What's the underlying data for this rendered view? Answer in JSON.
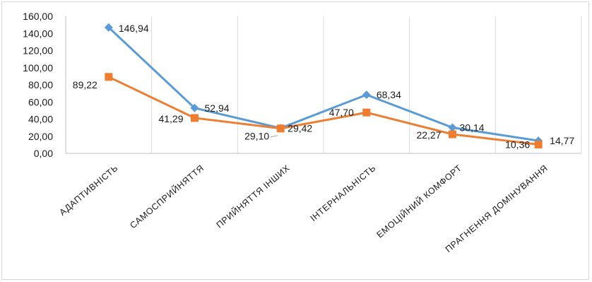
{
  "chart_data": {
    "type": "line",
    "title": "",
    "xlabel": "",
    "ylabel": "",
    "ylim": [
      0,
      160
    ],
    "y_ticks": [
      "0,00",
      "20,00",
      "40,00",
      "60,00",
      "80,00",
      "100,00",
      "120,00",
      "140,00",
      "160,00"
    ],
    "grid": "vertical",
    "legend": "none",
    "categories": [
      "АДАПТИВНІСТЬ",
      "САМОСПРИЙНЯТТЯ",
      "ПРИЙНЯТТЯ ІНШИХ",
      "ІНТЕРНАЛЬНІСТЬ",
      "ЕМОЦІЙНИЙ КОМФОРТ",
      "ПРАГНЕННЯ ДОМІНУВАННЯ"
    ],
    "series": [
      {
        "values": [
          146.94,
          52.94,
          29.42,
          68.34,
          30.14,
          14.77
        ],
        "labels": [
          "146,94",
          "52,94",
          "29,42",
          "68,34",
          "30,14",
          "14,77"
        ],
        "color": "#5b9bd5",
        "marker": "diamond"
      },
      {
        "values": [
          89.22,
          41.29,
          29.1,
          47.7,
          22.27,
          10.36
        ],
        "labels": [
          "89,22",
          "41,29",
          "29,10",
          "47,70",
          "22,27",
          "10,36"
        ],
        "color": "#ed7d31",
        "marker": "square"
      }
    ]
  }
}
